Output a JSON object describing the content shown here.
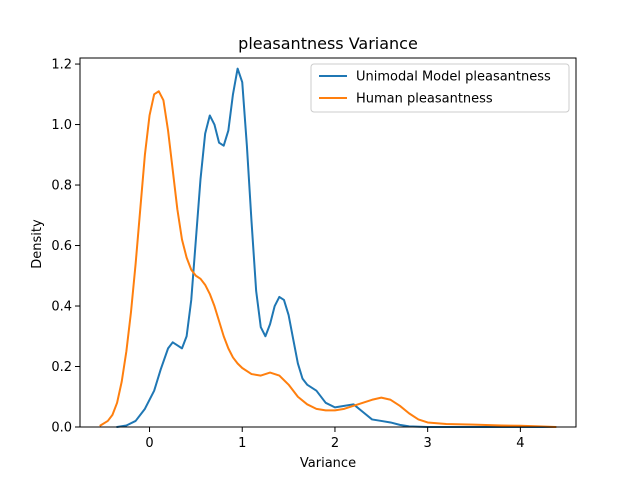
{
  "chart_data": {
    "type": "line",
    "title": "pleasantness Variance",
    "xlabel": "Variance",
    "ylabel": "Density",
    "xlim": [
      -0.75,
      4.6
    ],
    "ylim": [
      0,
      1.22
    ],
    "xticks": [
      0,
      1,
      2,
      3,
      4
    ],
    "yticks": [
      0.0,
      0.2,
      0.4,
      0.6,
      0.8,
      1.0,
      1.2
    ],
    "grid": false,
    "legend_position": "upper right",
    "series": [
      {
        "name": "Unimodal Model pleasantness",
        "color": "#1f77b4",
        "points": [
          [
            -0.35,
            0.0
          ],
          [
            -0.25,
            0.005
          ],
          [
            -0.15,
            0.02
          ],
          [
            -0.05,
            0.06
          ],
          [
            0.05,
            0.12
          ],
          [
            0.12,
            0.19
          ],
          [
            0.2,
            0.26
          ],
          [
            0.25,
            0.28
          ],
          [
            0.3,
            0.27
          ],
          [
            0.35,
            0.26
          ],
          [
            0.4,
            0.3
          ],
          [
            0.45,
            0.42
          ],
          [
            0.5,
            0.62
          ],
          [
            0.55,
            0.82
          ],
          [
            0.6,
            0.97
          ],
          [
            0.65,
            1.03
          ],
          [
            0.7,
            1.0
          ],
          [
            0.75,
            0.94
          ],
          [
            0.8,
            0.93
          ],
          [
            0.85,
            0.98
          ],
          [
            0.9,
            1.1
          ],
          [
            0.95,
            1.185
          ],
          [
            1.0,
            1.14
          ],
          [
            1.05,
            0.93
          ],
          [
            1.1,
            0.68
          ],
          [
            1.15,
            0.45
          ],
          [
            1.2,
            0.33
          ],
          [
            1.25,
            0.3
          ],
          [
            1.3,
            0.34
          ],
          [
            1.35,
            0.4
          ],
          [
            1.4,
            0.43
          ],
          [
            1.45,
            0.42
          ],
          [
            1.5,
            0.37
          ],
          [
            1.55,
            0.29
          ],
          [
            1.6,
            0.21
          ],
          [
            1.65,
            0.16
          ],
          [
            1.7,
            0.14
          ],
          [
            1.8,
            0.12
          ],
          [
            1.9,
            0.08
          ],
          [
            2.0,
            0.065
          ],
          [
            2.1,
            0.07
          ],
          [
            2.2,
            0.075
          ],
          [
            2.3,
            0.05
          ],
          [
            2.4,
            0.025
          ],
          [
            2.5,
            0.02
          ],
          [
            2.6,
            0.015
          ],
          [
            2.7,
            0.007
          ],
          [
            2.8,
            0.002
          ],
          [
            3.0,
            0.0
          ],
          [
            3.5,
            0.0
          ],
          [
            4.0,
            0.0
          ],
          [
            4.38,
            0.0
          ]
        ]
      },
      {
        "name": "Human pleasantness",
        "color": "#ff7f0e",
        "points": [
          [
            -0.53,
            0.005
          ],
          [
            -0.45,
            0.02
          ],
          [
            -0.4,
            0.04
          ],
          [
            -0.35,
            0.08
          ],
          [
            -0.3,
            0.15
          ],
          [
            -0.25,
            0.25
          ],
          [
            -0.2,
            0.38
          ],
          [
            -0.15,
            0.54
          ],
          [
            -0.1,
            0.72
          ],
          [
            -0.05,
            0.9
          ],
          [
            0.0,
            1.03
          ],
          [
            0.05,
            1.1
          ],
          [
            0.1,
            1.11
          ],
          [
            0.15,
            1.08
          ],
          [
            0.2,
            0.98
          ],
          [
            0.25,
            0.85
          ],
          [
            0.3,
            0.72
          ],
          [
            0.35,
            0.62
          ],
          [
            0.4,
            0.56
          ],
          [
            0.45,
            0.52
          ],
          [
            0.5,
            0.5
          ],
          [
            0.55,
            0.49
          ],
          [
            0.6,
            0.47
          ],
          [
            0.65,
            0.44
          ],
          [
            0.7,
            0.4
          ],
          [
            0.75,
            0.35
          ],
          [
            0.8,
            0.3
          ],
          [
            0.85,
            0.26
          ],
          [
            0.9,
            0.23
          ],
          [
            0.95,
            0.21
          ],
          [
            1.0,
            0.195
          ],
          [
            1.1,
            0.175
          ],
          [
            1.2,
            0.17
          ],
          [
            1.3,
            0.18
          ],
          [
            1.4,
            0.17
          ],
          [
            1.5,
            0.14
          ],
          [
            1.6,
            0.1
          ],
          [
            1.7,
            0.075
          ],
          [
            1.8,
            0.06
          ],
          [
            1.9,
            0.055
          ],
          [
            2.0,
            0.055
          ],
          [
            2.1,
            0.06
          ],
          [
            2.2,
            0.07
          ],
          [
            2.3,
            0.08
          ],
          [
            2.4,
            0.09
          ],
          [
            2.5,
            0.097
          ],
          [
            2.6,
            0.09
          ],
          [
            2.7,
            0.07
          ],
          [
            2.8,
            0.045
          ],
          [
            2.9,
            0.025
          ],
          [
            3.0,
            0.015
          ],
          [
            3.2,
            0.01
          ],
          [
            3.5,
            0.008
          ],
          [
            3.8,
            0.005
          ],
          [
            4.0,
            0.004
          ],
          [
            4.2,
            0.002
          ],
          [
            4.38,
            0.0
          ]
        ]
      }
    ]
  }
}
